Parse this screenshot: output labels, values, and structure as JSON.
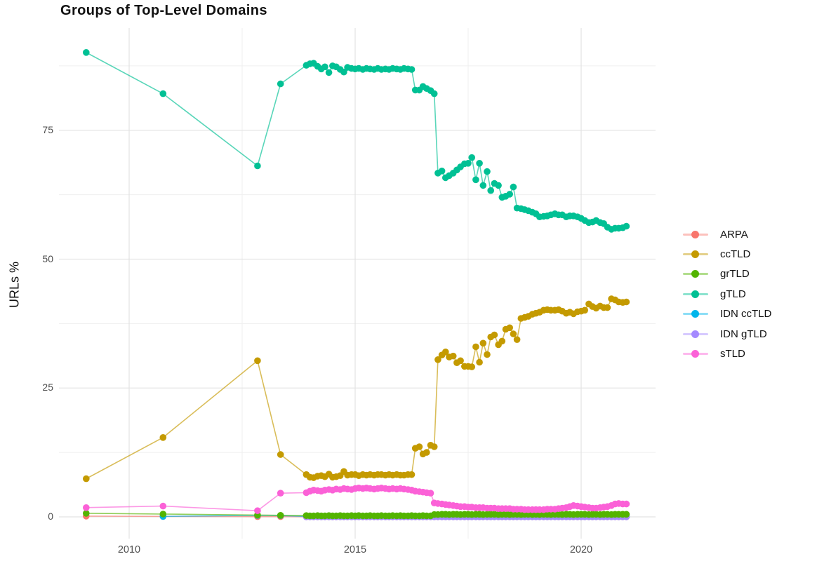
{
  "title": "Groups of Top-Level Domains",
  "y_axis": {
    "label": "URLs %",
    "ticks": [
      0,
      25,
      50,
      75
    ],
    "minor_ticks": [
      12.5,
      37.5,
      62.5,
      87.5
    ],
    "tick_labels": [
      "0",
      "25",
      "50",
      "75"
    ]
  },
  "x_axis": {
    "label": "",
    "ticks": [
      2010,
      2015,
      2020
    ],
    "minor_ticks": [
      2012.5,
      2017.5
    ],
    "tick_labels": [
      "2010",
      "2015",
      "2020"
    ]
  },
  "legend": {
    "position": "right",
    "items": [
      {
        "label": "ARPA",
        "color": "#F8766D"
      },
      {
        "label": "ccTLD",
        "color": "#C49A00"
      },
      {
        "label": "grTLD",
        "color": "#53B400"
      },
      {
        "label": "gTLD",
        "color": "#00C094"
      },
      {
        "label": "IDN ccTLD",
        "color": "#00B6EB"
      },
      {
        "label": "IDN gTLD",
        "color": "#A58AFF"
      },
      {
        "label": "sTLD",
        "color": "#FB61D7"
      }
    ]
  },
  "chart_data": {
    "type": "line",
    "title": "Groups of Top-Level Domains",
    "xlabel": "",
    "ylabel": "URLs %",
    "xlim": [
      2008.4,
      2021.7
    ],
    "ylim": [
      -4.2,
      95
    ],
    "grid": true,
    "legend_position": "right",
    "z_order": [
      0,
      4,
      5,
      2,
      6,
      1,
      3
    ],
    "x": [
      2009.05,
      2010.75,
      2012.84,
      2013.35,
      2013.92,
      2014.0,
      2014.08,
      2014.17,
      2014.25,
      2014.33,
      2014.42,
      2014.5,
      2014.58,
      2014.67,
      2014.75,
      2014.83,
      2014.92,
      2015.0,
      2015.08,
      2015.17,
      2015.25,
      2015.33,
      2015.42,
      2015.5,
      2015.58,
      2015.67,
      2015.75,
      2015.83,
      2015.92,
      2016.0,
      2016.08,
      2016.17,
      2016.25,
      2016.33,
      2016.42,
      2016.5,
      2016.58,
      2016.67,
      2016.75,
      2016.83,
      2016.92,
      2017.0,
      2017.08,
      2017.17,
      2017.25,
      2017.33,
      2017.42,
      2017.5,
      2017.58,
      2017.67,
      2017.75,
      2017.83,
      2017.92,
      2018.0,
      2018.08,
      2018.17,
      2018.25,
      2018.33,
      2018.42,
      2018.5,
      2018.58,
      2018.67,
      2018.75,
      2018.83,
      2018.92,
      2019.0,
      2019.08,
      2019.17,
      2019.25,
      2019.33,
      2019.42,
      2019.5,
      2019.58,
      2019.67,
      2019.75,
      2019.83,
      2019.92,
      2020.0,
      2020.08,
      2020.17,
      2020.25,
      2020.33,
      2020.42,
      2020.5,
      2020.58,
      2020.67,
      2020.75,
      2020.83,
      2020.92,
      2021.0
    ],
    "series": [
      {
        "name": "ARPA",
        "color": "#F8766D",
        "values": [
          0.15,
          0.1,
          0.05,
          0.05,
          0.03,
          0.03,
          0.03,
          0.03,
          0.03,
          0.03,
          0.03,
          0.03,
          0.03,
          0.03,
          0.03,
          0.03,
          0.03,
          0.03,
          0.03,
          0.03,
          0.03,
          0.03,
          0.03,
          0.03,
          0.03,
          0.03,
          0.03,
          0.03,
          0.03,
          0.03,
          0.03,
          0.03,
          0.03,
          0.03,
          0.03,
          0.03,
          0.03,
          0.03,
          0.03,
          0.03,
          0.03,
          0.03,
          0.03,
          0.03,
          0.03,
          0.03,
          0.03,
          0.03,
          0.03,
          0.03,
          0.03,
          0.03,
          0.03,
          0.03,
          0.03,
          0.03,
          0.03,
          0.03,
          0.03,
          0.03,
          0.03,
          0.03,
          0.03,
          0.03,
          0.03,
          0.03,
          0.03,
          0.03,
          0.03,
          0.03,
          0.03,
          0.03,
          0.03,
          0.03,
          0.03,
          0.03,
          0.03,
          0.03,
          0.03,
          0.03,
          0.03,
          0.03,
          0.03,
          0.03,
          0.03,
          0.03,
          0.03,
          0.03,
          0.03,
          0.03
        ]
      },
      {
        "name": "ccTLD",
        "color": "#C49A00",
        "values": [
          7.4,
          15.4,
          30.3,
          12.1,
          8.2,
          7.7,
          7.6,
          7.9,
          8.0,
          7.8,
          8.3,
          7.7,
          7.8,
          8.0,
          8.8,
          8.1,
          8.2,
          8.2,
          8.0,
          8.2,
          8.1,
          8.2,
          8.1,
          8.2,
          8.2,
          8.1,
          8.2,
          8.1,
          8.2,
          8.1,
          8.1,
          8.2,
          8.2,
          13.3,
          13.6,
          12.2,
          12.5,
          13.9,
          13.6,
          30.5,
          31.4,
          32.0,
          31.0,
          31.2,
          29.9,
          30.3,
          29.2,
          29.2,
          29.1,
          33.0,
          30.0,
          33.7,
          31.5,
          34.9,
          35.3,
          33.4,
          34.1,
          36.4,
          36.7,
          35.5,
          34.4,
          38.5,
          38.7,
          38.9,
          39.3,
          39.5,
          39.7,
          40.1,
          40.2,
          40.1,
          40.1,
          40.2,
          39.9,
          39.5,
          39.7,
          39.4,
          39.8,
          39.9,
          40.1,
          41.3,
          40.8,
          40.5,
          40.9,
          40.6,
          40.6,
          42.3,
          42.1,
          41.7,
          41.6,
          41.7
        ]
      },
      {
        "name": "grTLD",
        "color": "#53B400",
        "values": [
          0.7,
          0.55,
          0.35,
          0.3,
          0.25,
          0.2,
          0.2,
          0.25,
          0.2,
          0.2,
          0.25,
          0.2,
          0.2,
          0.25,
          0.2,
          0.2,
          0.25,
          0.2,
          0.25,
          0.2,
          0.2,
          0.25,
          0.2,
          0.2,
          0.25,
          0.2,
          0.2,
          0.25,
          0.2,
          0.25,
          0.2,
          0.2,
          0.25,
          0.2,
          0.2,
          0.25,
          0.2,
          0.2,
          0.45,
          0.45,
          0.5,
          0.5,
          0.45,
          0.5,
          0.5,
          0.45,
          0.5,
          0.5,
          0.45,
          0.5,
          0.5,
          0.45,
          0.5,
          0.5,
          0.5,
          0.45,
          0.5,
          0.5,
          0.45,
          0.5,
          0.5,
          0.45,
          0.5,
          0.5,
          0.45,
          0.5,
          0.45,
          0.5,
          0.5,
          0.45,
          0.5,
          0.5,
          0.45,
          0.5,
          0.5,
          0.45,
          0.5,
          0.5,
          0.5,
          0.45,
          0.5,
          0.5,
          0.45,
          0.5,
          0.5,
          0.45,
          0.5,
          0.5,
          0.5,
          0.5
        ]
      },
      {
        "name": "gTLD",
        "color": "#00C094",
        "values": [
          90.1,
          82.1,
          68.1,
          84.0,
          87.6,
          87.9,
          88.0,
          87.4,
          86.9,
          87.3,
          86.2,
          87.5,
          87.3,
          86.8,
          86.3,
          87.2,
          87.0,
          86.9,
          87.0,
          86.8,
          87.0,
          86.9,
          86.8,
          87.0,
          86.8,
          86.9,
          86.8,
          87.0,
          86.9,
          86.8,
          87.0,
          86.9,
          86.8,
          82.8,
          82.8,
          83.5,
          83.1,
          82.7,
          82.1,
          66.7,
          67.1,
          65.8,
          66.2,
          66.7,
          67.3,
          67.9,
          68.5,
          68.6,
          69.7,
          65.4,
          68.6,
          64.3,
          67.0,
          63.3,
          64.7,
          64.3,
          62.0,
          62.2,
          62.6,
          64.0,
          59.9,
          59.8,
          59.6,
          59.4,
          59.1,
          58.8,
          58.2,
          58.3,
          58.4,
          58.6,
          58.8,
          58.6,
          58.6,
          58.2,
          58.4,
          58.4,
          58.2,
          57.9,
          57.5,
          57.1,
          57.2,
          57.5,
          57.1,
          56.9,
          56.2,
          55.8,
          56.0,
          56.0,
          56.1,
          56.4
        ]
      },
      {
        "name": "IDN ccTLD",
        "color": "#00B6EB",
        "values": [
          null,
          0.1,
          0.3,
          0.25,
          0.1,
          0.05,
          0.05,
          0.05,
          0.05,
          0.05,
          0.05,
          0.05,
          0.05,
          0.05,
          0.05,
          0.05,
          0.05,
          0.05,
          0.05,
          0.05,
          0.05,
          0.05,
          0.05,
          0.05,
          0.05,
          0.05,
          0.05,
          0.05,
          0.05,
          0.05,
          0.05,
          0.05,
          0.05,
          0.05,
          0.05,
          0.05,
          0.05,
          0.05,
          0.05,
          0.05,
          0.05,
          0.05,
          0.05,
          0.05,
          0.05,
          0.05,
          0.05,
          0.05,
          0.05,
          0.05,
          0.05,
          0.05,
          0.05,
          0.05,
          0.05,
          0.05,
          0.05,
          0.05,
          0.05,
          0.05,
          0.05,
          0.05,
          0.05,
          0.05,
          0.05,
          0.05,
          0.05,
          0.05,
          0.05,
          0.05,
          0.05,
          0.05,
          0.05,
          0.05,
          0.05,
          0.05,
          0.05,
          0.05,
          0.05,
          0.05,
          0.05,
          0.05,
          0.05,
          0.05,
          0.05,
          0.05,
          0.05,
          0.05,
          0.05,
          0.05
        ]
      },
      {
        "name": "IDN gTLD",
        "color": "#A58AFF",
        "values": [
          null,
          null,
          null,
          null,
          0.02,
          0.02,
          0.02,
          0.02,
          0.02,
          0.02,
          0.02,
          0.02,
          0.02,
          0.02,
          0.02,
          0.02,
          0.02,
          0.02,
          0.02,
          0.02,
          0.02,
          0.02,
          0.02,
          0.02,
          0.02,
          0.02,
          0.02,
          0.02,
          0.02,
          0.02,
          0.02,
          0.02,
          0.02,
          0.02,
          0.02,
          0.02,
          0.02,
          0.02,
          0.02,
          0.02,
          0.02,
          0.02,
          0.02,
          0.02,
          0.02,
          0.02,
          0.02,
          0.02,
          0.02,
          0.02,
          0.02,
          0.02,
          0.02,
          0.02,
          0.02,
          0.02,
          0.02,
          0.02,
          0.02,
          0.02,
          0.02,
          0.02,
          0.02,
          0.02,
          0.02,
          0.02,
          0.02,
          0.02,
          0.02,
          0.02,
          0.02,
          0.02,
          0.02,
          0.02,
          0.02,
          0.02,
          0.02,
          0.02,
          0.02,
          0.02,
          0.02,
          0.02,
          0.02,
          0.02,
          0.02,
          0.02,
          0.02,
          0.02,
          0.02,
          0.02
        ]
      },
      {
        "name": "sTLD",
        "color": "#FB61D7",
        "values": [
          1.8,
          2.1,
          1.2,
          4.6,
          4.7,
          5.0,
          5.2,
          5.1,
          5.0,
          5.2,
          5.3,
          5.2,
          5.4,
          5.3,
          5.5,
          5.4,
          5.3,
          5.5,
          5.6,
          5.5,
          5.6,
          5.5,
          5.4,
          5.5,
          5.6,
          5.5,
          5.4,
          5.5,
          5.4,
          5.5,
          5.4,
          5.3,
          5.2,
          5.0,
          4.9,
          4.8,
          4.7,
          4.6,
          2.7,
          2.6,
          2.5,
          2.4,
          2.3,
          2.2,
          2.1,
          2.0,
          2.0,
          1.9,
          1.9,
          1.8,
          1.8,
          1.8,
          1.7,
          1.7,
          1.7,
          1.6,
          1.6,
          1.6,
          1.6,
          1.5,
          1.5,
          1.5,
          1.4,
          1.4,
          1.4,
          1.4,
          1.4,
          1.4,
          1.5,
          1.5,
          1.5,
          1.6,
          1.7,
          1.8,
          2.0,
          2.2,
          2.1,
          2.0,
          1.9,
          1.8,
          1.7,
          1.7,
          1.8,
          1.9,
          2.0,
          2.2,
          2.5,
          2.6,
          2.5,
          2.5
        ]
      }
    ]
  }
}
